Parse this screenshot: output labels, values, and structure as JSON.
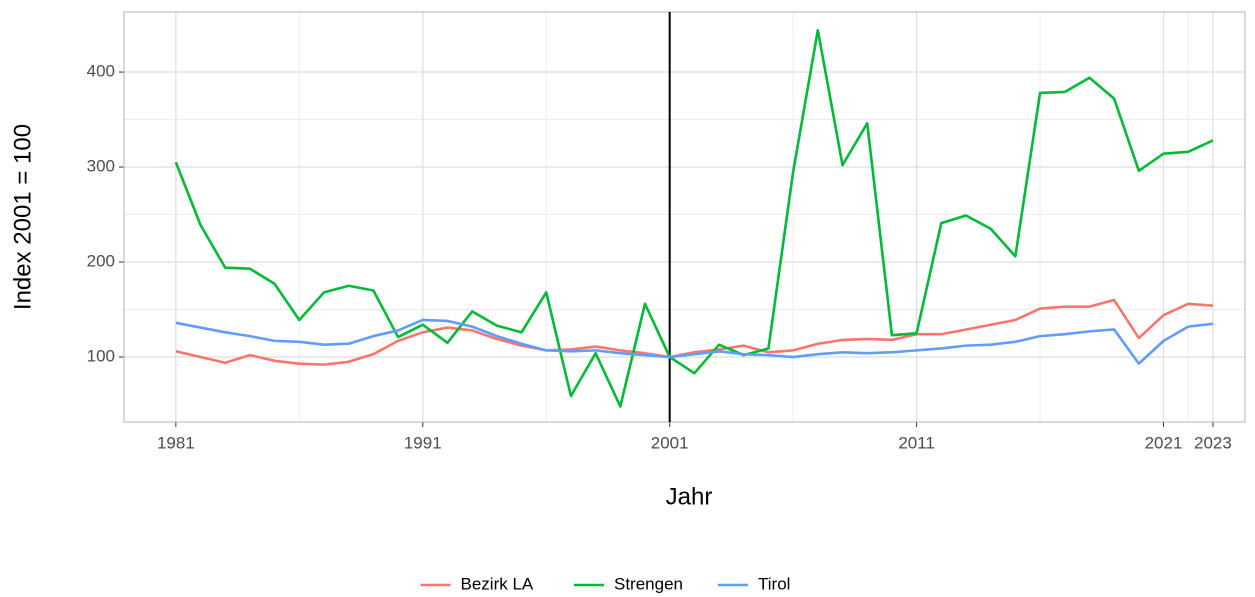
{
  "chart_data": {
    "type": "line",
    "x_label": "Jahr",
    "y_label": "Index 2001 = 100",
    "x": [
      1981,
      1982,
      1983,
      1984,
      1985,
      1986,
      1987,
      1988,
      1989,
      1990,
      1991,
      1992,
      1993,
      1994,
      1995,
      1996,
      1997,
      1998,
      1999,
      2000,
      2001,
      2002,
      2003,
      2004,
      2005,
      2006,
      2007,
      2008,
      2009,
      2010,
      2011,
      2012,
      2013,
      2014,
      2015,
      2016,
      2017,
      2018,
      2019,
      2020,
      2021,
      2022,
      2023
    ],
    "series": [
      {
        "name": "Bezirk LA",
        "color": "#F8766D",
        "values": [
          106,
          100,
          94,
          102,
          96,
          93,
          92,
          95,
          103,
          117,
          126,
          131,
          128,
          119,
          112,
          107,
          108,
          111,
          107,
          104,
          100,
          105,
          108,
          112,
          105,
          107,
          114,
          118,
          119,
          118,
          124,
          124,
          129,
          134,
          139,
          151,
          153,
          153,
          160,
          120,
          144,
          156,
          154
        ]
      },
      {
        "name": "Strengen",
        "color": "#00BA38",
        "values": [
          305,
          239,
          194,
          193,
          177,
          139,
          168,
          175,
          170,
          121,
          134,
          115,
          148,
          133,
          126,
          168,
          59,
          104,
          48,
          156,
          100,
          83,
          113,
          102,
          109,
          295,
          444,
          302,
          346,
          123,
          125,
          241,
          249,
          235,
          206,
          378,
          379,
          394,
          372,
          296,
          314,
          316,
          328
        ]
      },
      {
        "name": "Tirol",
        "color": "#619CFF",
        "values": [
          136,
          131,
          126,
          122,
          117,
          116,
          113,
          114,
          122,
          128,
          139,
          138,
          132,
          122,
          114,
          107,
          106,
          107,
          104,
          102,
          100,
          103,
          106,
          103,
          102,
          100,
          103,
          105,
          104,
          105,
          107,
          109,
          112,
          113,
          116,
          122,
          124,
          127,
          129,
          93,
          117,
          132,
          135
        ]
      }
    ],
    "xlim": [
      1978.9,
      2024.3
    ],
    "xticks": [
      1981,
      1991,
      2001,
      2011,
      2021,
      2023
    ],
    "ylim": [
      31.6,
      463.2
    ],
    "yticks": [
      100,
      200,
      300,
      400
    ],
    "vline": 2001,
    "grid": true,
    "minor_grid": true,
    "legend": "bottom"
  }
}
